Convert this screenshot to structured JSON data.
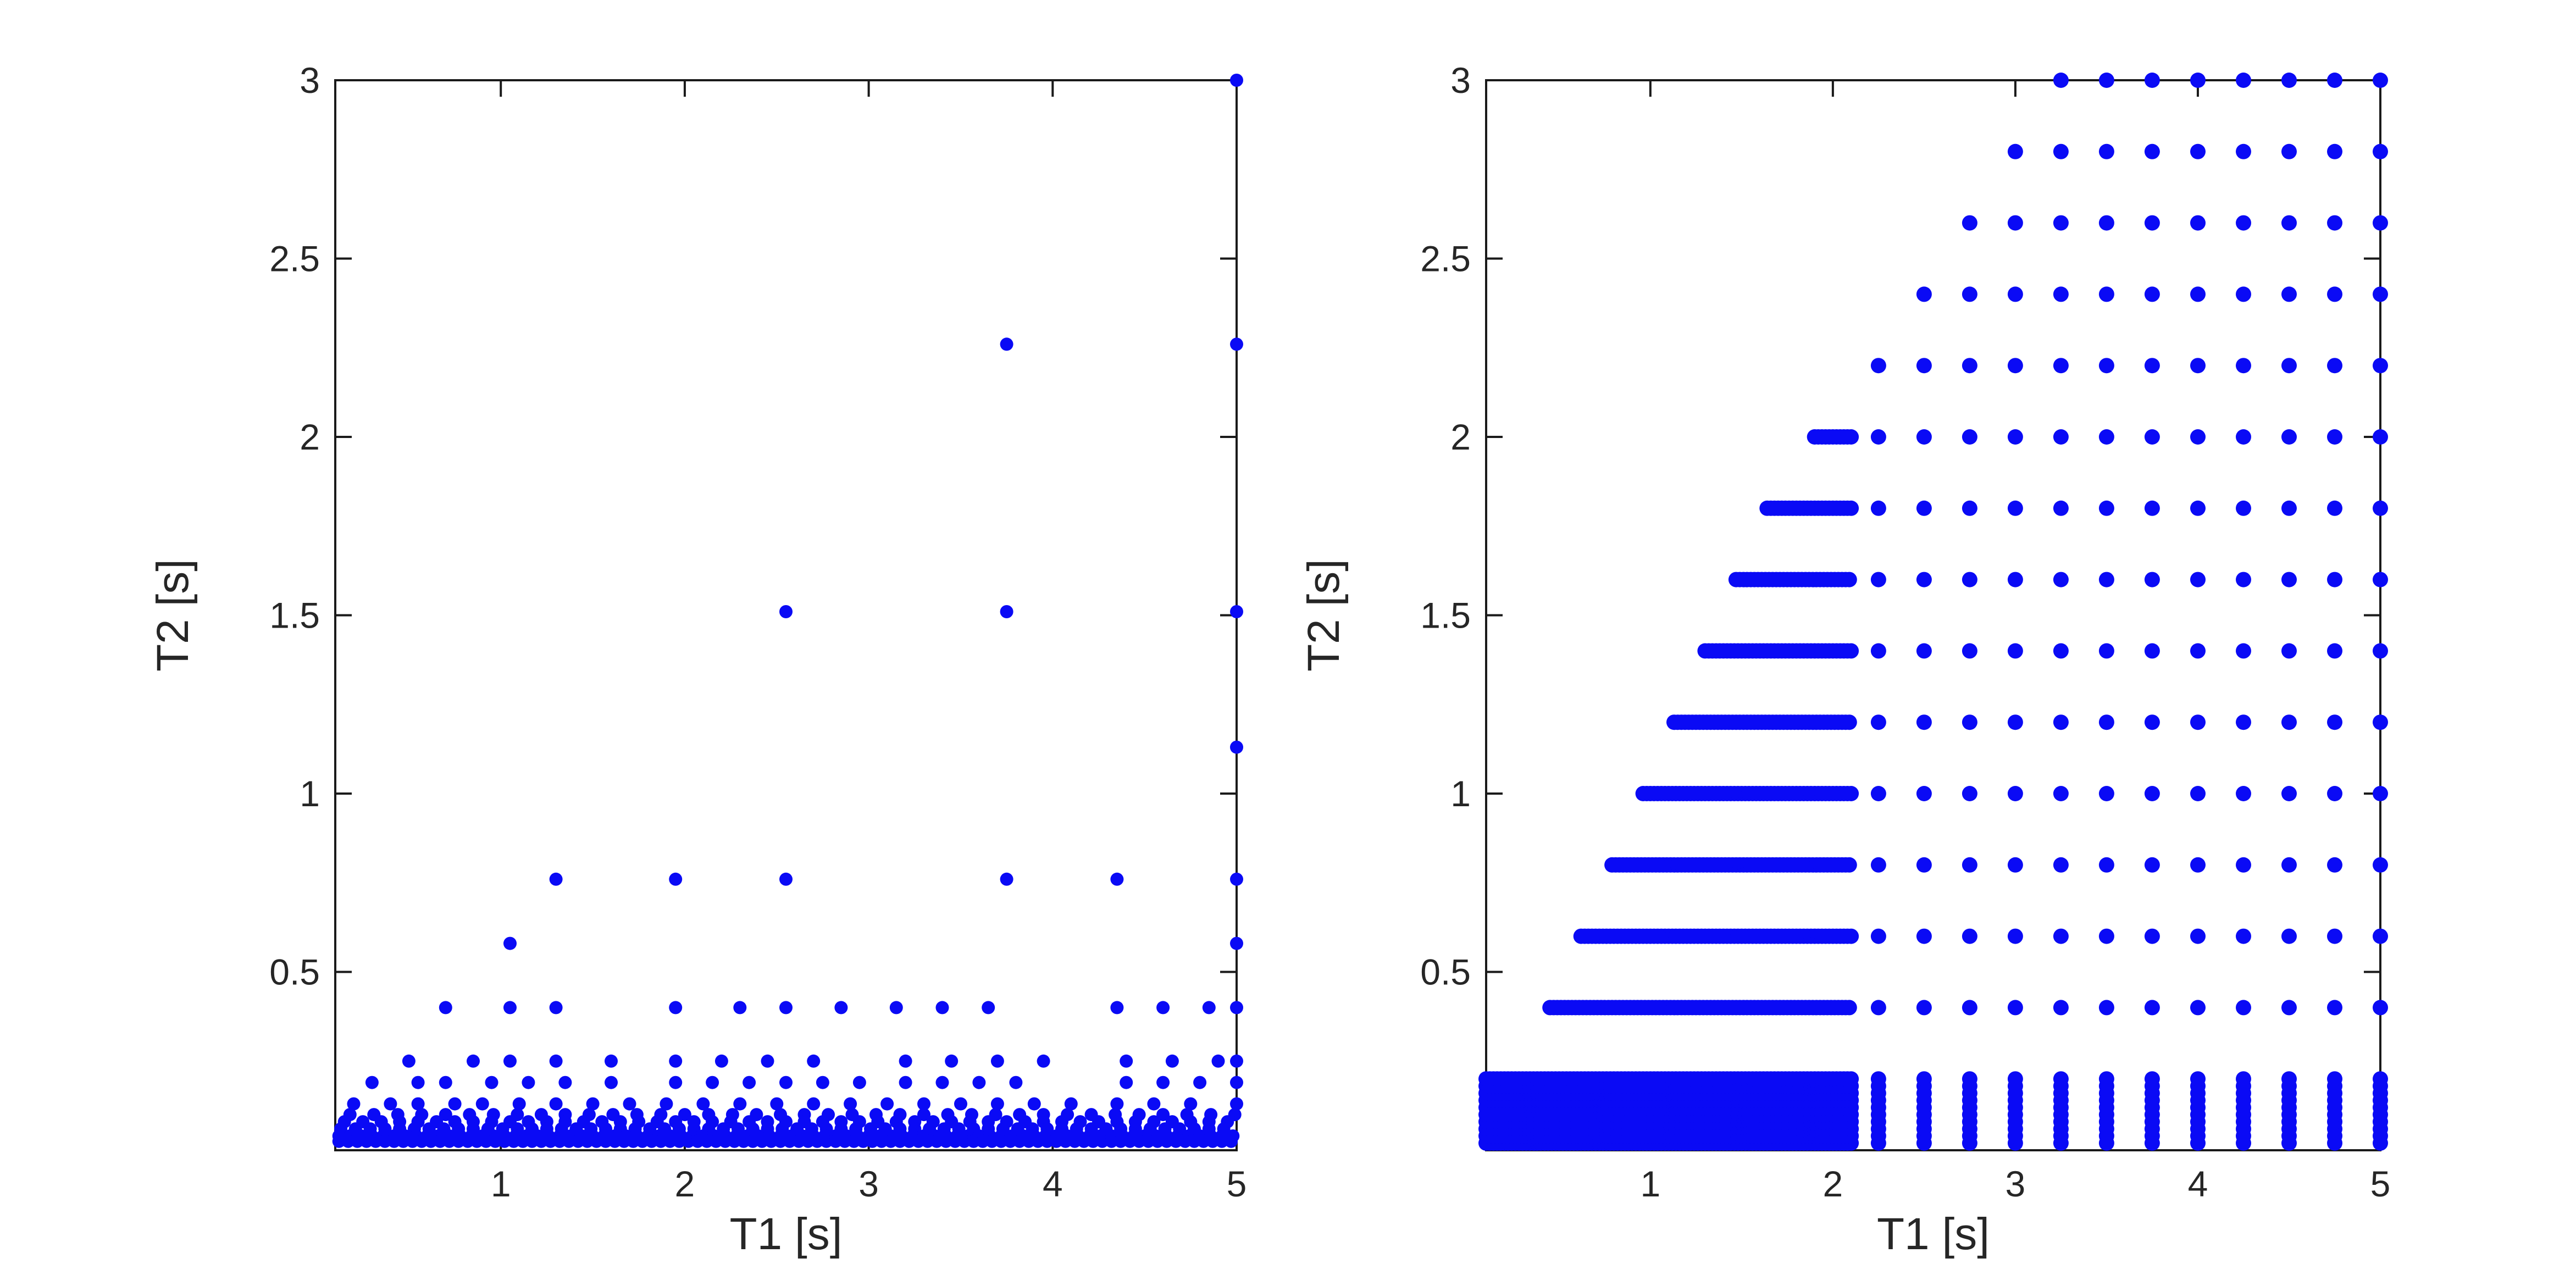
{
  "figure": {
    "background": "#ffffff",
    "marker_color": "#0a0af5",
    "axis_color": "#1a1a1a",
    "label_color": "#262626"
  },
  "chart_data": [
    {
      "type": "scatter",
      "name": "sparse-t1-t2-scatter",
      "title": "",
      "xlabel": "T1 [s]",
      "ylabel": "T2 [s]",
      "xlim": [
        0.1,
        5
      ],
      "ylim": [
        0,
        3
      ],
      "xticks": [
        1,
        2,
        3,
        4,
        5
      ],
      "yticks": [
        0.5,
        1,
        1.5,
        2,
        2.5,
        3
      ],
      "grid": false,
      "legend": null,
      "marker": {
        "shape": "circle",
        "radius_px": 12
      },
      "points_by_t2_row": [
        {
          "t2": 3.0,
          "t1": [
            5.0
          ]
        },
        {
          "t2": 2.26,
          "t1": [
            3.75,
            5.0
          ]
        },
        {
          "t2": 1.51,
          "t1": [
            2.55,
            3.75,
            5.0
          ]
        },
        {
          "t2": 1.13,
          "t1": [
            5.0
          ]
        },
        {
          "t2": 0.76,
          "t1": [
            1.3,
            1.95,
            2.55,
            3.75,
            4.35,
            5.0
          ]
        },
        {
          "t2": 0.58,
          "t1": [
            1.05,
            5.0
          ]
        },
        {
          "t2": 0.4,
          "t1": [
            0.7,
            1.05,
            1.3,
            1.95,
            2.3,
            2.55,
            2.85,
            3.15,
            3.4,
            3.65,
            4.35,
            4.6,
            4.85,
            5.0
          ]
        },
        {
          "t2": 0.25,
          "t1": [
            0.5,
            0.85,
            1.05,
            1.3,
            1.6,
            1.95,
            2.2,
            2.45,
            2.7,
            3.2,
            3.45,
            3.7,
            3.95,
            4.4,
            4.65,
            4.9,
            5.0
          ]
        },
        {
          "t2": 0.19,
          "t1": [
            0.3,
            0.55,
            0.7,
            0.95,
            1.15,
            1.35,
            1.6,
            1.95,
            2.15,
            2.35,
            2.55,
            2.75,
            2.95,
            3.2,
            3.4,
            3.6,
            3.8,
            4.4,
            4.6,
            4.8,
            5.0
          ]
        },
        {
          "t2": 0.13,
          "t1": [
            0.2,
            0.4,
            0.55,
            0.75,
            0.9,
            1.1,
            1.3,
            1.5,
            1.7,
            1.9,
            2.1,
            2.3,
            2.5,
            2.7,
            2.9,
            3.1,
            3.3,
            3.5,
            3.7,
            3.9,
            4.1,
            4.35,
            4.55,
            4.75,
            5.0
          ]
        },
        {
          "t2": 0.1,
          "t1_range": [
            0.18,
            5.0,
            0.13
          ]
        },
        {
          "t2": 0.08,
          "t1_range": [
            0.15,
            5.0,
            0.1
          ]
        },
        {
          "t2": 0.06,
          "t1_range": [
            0.13,
            5.0,
            0.08
          ]
        },
        {
          "t2": 0.04,
          "t1_range": [
            0.12,
            5.0,
            0.06
          ]
        },
        {
          "t2": 0.025,
          "t1_range": [
            0.12,
            5.0,
            0.05
          ]
        }
      ]
    },
    {
      "type": "scatter",
      "name": "dense-grid-t1-t2-scatter",
      "title": "",
      "xlabel": "T1 [s]",
      "ylabel": "T2 [s]",
      "xlim": [
        0.1,
        5
      ],
      "ylim": [
        0,
        3
      ],
      "xticks": [
        1,
        2,
        3,
        4,
        5
      ],
      "yticks": [
        0.5,
        1,
        1.5,
        2,
        2.5,
        3
      ],
      "grid": false,
      "legend": null,
      "marker": {
        "shape": "circle",
        "radius_px": 14
      },
      "generator": {
        "constraint": "T2 < T1",
        "dense_t1": [
          0.1,
          2.1,
          0.02
        ],
        "column_t1": [
          2.25,
          2.5,
          2.75,
          3.0,
          3.25,
          3.5,
          3.75,
          4.0,
          4.25,
          4.5,
          4.75,
          5.0
        ],
        "block_t2": [
          0.02,
          0.2,
          0.02
        ],
        "bars": [
          {
            "t2": 0.4,
            "dense_start": 0.45
          },
          {
            "t2": 0.6,
            "dense_start": 0.62
          },
          {
            "t2": 0.8,
            "dense_start": 0.79
          },
          {
            "t2": 1.0,
            "dense_start": 0.96
          },
          {
            "t2": 1.2,
            "dense_start": 1.13
          },
          {
            "t2": 1.4,
            "dense_start": 1.3
          },
          {
            "t2": 1.6,
            "dense_start": 1.47
          },
          {
            "t2": 1.8,
            "dense_start": 1.64
          },
          {
            "t2": 2.0,
            "dense_start": 1.9
          },
          {
            "t2": 2.2,
            "dense_start": null
          },
          {
            "t2": 2.4,
            "dense_start": null
          },
          {
            "t2": 2.6,
            "dense_start": null
          },
          {
            "t2": 2.8,
            "dense_start": null
          },
          {
            "t2": 3.0,
            "dense_start": null
          }
        ]
      }
    }
  ]
}
